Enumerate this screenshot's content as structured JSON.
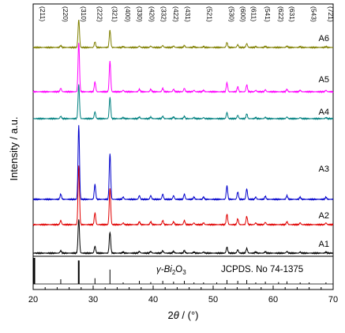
{
  "chart_data": {
    "type": "line",
    "xlabel_prefix": "2",
    "xlabel_theta": "θ",
    "xlabel_unit": " / (°)",
    "ylabel": "Intensity / a.u.",
    "xlim": [
      20,
      70
    ],
    "x_ticks": [
      "20",
      "30",
      "40",
      "50",
      "60",
      "70"
    ],
    "reference": {
      "phase_prefix": "γ-Bi",
      "phase_sub1": "2",
      "phase_mid": "O",
      "phase_sub2": "3",
      "card": "JCPDS. No 74-1375",
      "color": "#000000",
      "lines": [
        {
          "x": 20.2,
          "h": 1.0
        },
        {
          "x": 24.6,
          "h": 0.18
        },
        {
          "x": 27.6,
          "h": 0.9
        },
        {
          "x": 30.3,
          "h": 0.22
        },
        {
          "x": 32.8,
          "h": 0.55
        },
        {
          "x": 35.0,
          "h": 0.06
        },
        {
          "x": 37.7,
          "h": 0.12
        },
        {
          "x": 39.6,
          "h": 0.07
        },
        {
          "x": 41.6,
          "h": 0.12
        },
        {
          "x": 43.4,
          "h": 0.09
        },
        {
          "x": 45.2,
          "h": 0.12
        },
        {
          "x": 46.8,
          "h": 0.06
        },
        {
          "x": 48.4,
          "h": 0.06
        },
        {
          "x": 50.6,
          "h": 0.06
        },
        {
          "x": 52.3,
          "h": 0.15
        },
        {
          "x": 54.1,
          "h": 0.12
        },
        {
          "x": 55.6,
          "h": 0.15
        },
        {
          "x": 57.1,
          "h": 0.06
        },
        {
          "x": 58.7,
          "h": 0.09
        },
        {
          "x": 60.9,
          "h": 0.07
        },
        {
          "x": 62.3,
          "h": 0.1
        },
        {
          "x": 64.5,
          "h": 0.06
        },
        {
          "x": 66.0,
          "h": 0.06
        },
        {
          "x": 68.8,
          "h": 0.06
        }
      ]
    },
    "hkl_labels": [
      {
        "label": "(211)",
        "x": 20.8
      },
      {
        "label": "(220)",
        "x": 24.6
      },
      {
        "label": "(310)",
        "x": 27.6
      },
      {
        "label": "(222)",
        "x": 30.3
      },
      {
        "label": "(321)",
        "x": 32.8
      },
      {
        "label": "(400)",
        "x": 35.0
      },
      {
        "label": "(330)",
        "x": 37.0
      },
      {
        "label": "(420)",
        "x": 39.0
      },
      {
        "label": "(332)",
        "x": 41.0
      },
      {
        "label": "(422)",
        "x": 43.0
      },
      {
        "label": "(431)",
        "x": 45.0
      },
      {
        "label": "(521)",
        "x": 48.6
      },
      {
        "label": "(530)",
        "x": 52.3
      },
      {
        "label": "(600)",
        "x": 54.2
      },
      {
        "label": "(611)",
        "x": 56.0
      },
      {
        "label": "(541)",
        "x": 58.3
      },
      {
        "label": "(622)",
        "x": 60.5
      },
      {
        "label": "(631)",
        "x": 62.4
      },
      {
        "label": "(543)",
        "x": 66.0
      },
      {
        "label": "(721)",
        "x": 68.8
      }
    ],
    "peaks": [
      {
        "x": 24.6,
        "h": 0.07
      },
      {
        "x": 27.6,
        "h": 1.0
      },
      {
        "x": 30.3,
        "h": 0.2
      },
      {
        "x": 32.8,
        "h": 0.62
      },
      {
        "x": 35.0,
        "h": 0.03
      },
      {
        "x": 37.7,
        "h": 0.05
      },
      {
        "x": 39.6,
        "h": 0.05
      },
      {
        "x": 41.6,
        "h": 0.07
      },
      {
        "x": 43.4,
        "h": 0.05
      },
      {
        "x": 45.2,
        "h": 0.07
      },
      {
        "x": 46.8,
        "h": 0.03
      },
      {
        "x": 48.4,
        "h": 0.03
      },
      {
        "x": 52.3,
        "h": 0.18
      },
      {
        "x": 54.1,
        "h": 0.1
      },
      {
        "x": 55.6,
        "h": 0.14
      },
      {
        "x": 57.1,
        "h": 0.03
      },
      {
        "x": 58.7,
        "h": 0.04
      },
      {
        "x": 62.3,
        "h": 0.05
      },
      {
        "x": 64.5,
        "h": 0.03
      },
      {
        "x": 68.8,
        "h": 0.03
      }
    ],
    "series": [
      {
        "name": "A1",
        "color": "#000000",
        "scale": 0.55
      },
      {
        "name": "A2",
        "color": "#e00000",
        "scale": 0.95
      },
      {
        "name": "A3",
        "color": "#0000cc",
        "scale": 1.2
      },
      {
        "name": "A4",
        "color": "#008080",
        "scale": 0.55
      },
      {
        "name": "A5",
        "color": "#ff00ff",
        "scale": 0.8
      },
      {
        "name": "A6",
        "color": "#808000",
        "scale": 0.45
      }
    ]
  }
}
